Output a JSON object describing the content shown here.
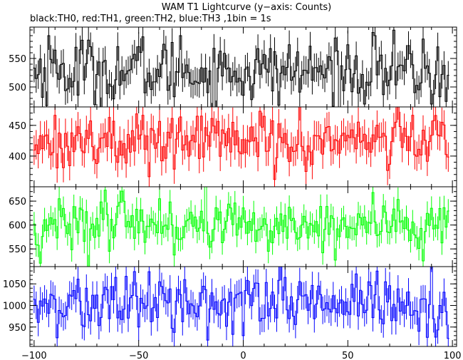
{
  "chart_data": {
    "type": "line",
    "title": "WAM T1 Lightcurve (y−axis: Counts)",
    "subtitle": "black:TH0, red:TH1, green:TH2, blue:TH3 ,1bin = 1s",
    "x_range": [
      -102,
      102
    ],
    "x_ticks": [
      -100,
      -50,
      0,
      50,
      100
    ],
    "x_tick_labels": [
      "−100",
      "−50",
      "0",
      "50",
      "100"
    ],
    "grid": false,
    "panels": [
      {
        "name": "TH0",
        "color": "#000000",
        "y_range": [
          465,
          605
        ],
        "y_ticks": [
          500,
          550
        ],
        "mean": 527,
        "amplitude": 28,
        "error": 25,
        "spikes": [
          [
            -93,
            590
          ],
          [
            -77,
            582
          ],
          [
            -48,
            588
          ],
          [
            -30,
            590
          ],
          [
            63,
            590
          ],
          [
            90,
            470
          ],
          [
            -17,
            490
          ]
        ]
      },
      {
        "name": "TH1",
        "color": "#ff0000",
        "y_range": [
          350,
          480
        ],
        "y_ticks": [
          400,
          450
        ],
        "mean": 425,
        "amplitude": 22,
        "error": 24,
        "spikes": [
          [
            -101,
            365
          ],
          [
            -20,
            465
          ],
          [
            15,
            362
          ],
          [
            30,
            375
          ],
          [
            -5,
            455
          ],
          [
            95,
            455
          ]
        ]
      },
      {
        "name": "TH2",
        "color": "#00ff00",
        "y_range": [
          513,
          680
        ],
        "y_ticks": [
          550,
          600,
          650
        ],
        "mean": 600,
        "amplitude": 28,
        "error": 25,
        "spikes": [
          [
            -97,
            520
          ],
          [
            -88,
            655
          ],
          [
            -40,
            655
          ],
          [
            62,
            668
          ],
          [
            86,
            525
          ],
          [
            12,
            545
          ],
          [
            -64,
            545
          ]
        ]
      },
      {
        "name": "TH3",
        "color": "#0000ff",
        "y_range": [
          905,
          1090
        ],
        "y_ticks": [
          950,
          1000,
          1050
        ],
        "mean": 1002,
        "amplitude": 32,
        "error": 32,
        "spikes": [
          [
            -89,
            925
          ],
          [
            18,
            1090
          ],
          [
            20,
            1065
          ],
          [
            -28,
            1060
          ],
          [
            0,
            930
          ],
          [
            84,
            940
          ],
          [
            60,
            1055
          ]
        ]
      }
    ]
  }
}
